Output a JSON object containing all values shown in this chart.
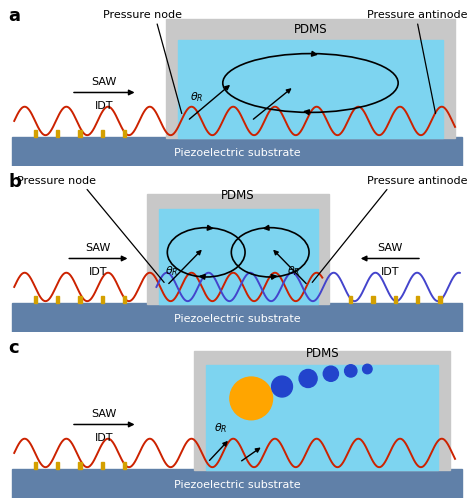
{
  "fig_width": 4.74,
  "fig_height": 4.98,
  "bg_color": "#ffffff",
  "gray_bg": "#d4d4d4",
  "pdms_color": "#7dd4f0",
  "substrate_color": "#6080a8",
  "wave_red": "#cc2200",
  "wave_blue": "#4444cc",
  "idt_color": "#d4a000",
  "panel_label_size": 13,
  "text_size": 8,
  "substrate_label": "Piezoelectric substrate",
  "pdms_label": "PDMS",
  "saw_label": "SAW",
  "idt_label": "IDT",
  "pressure_node": "Pressure node",
  "pressure_antinode": "Pressure antinode"
}
